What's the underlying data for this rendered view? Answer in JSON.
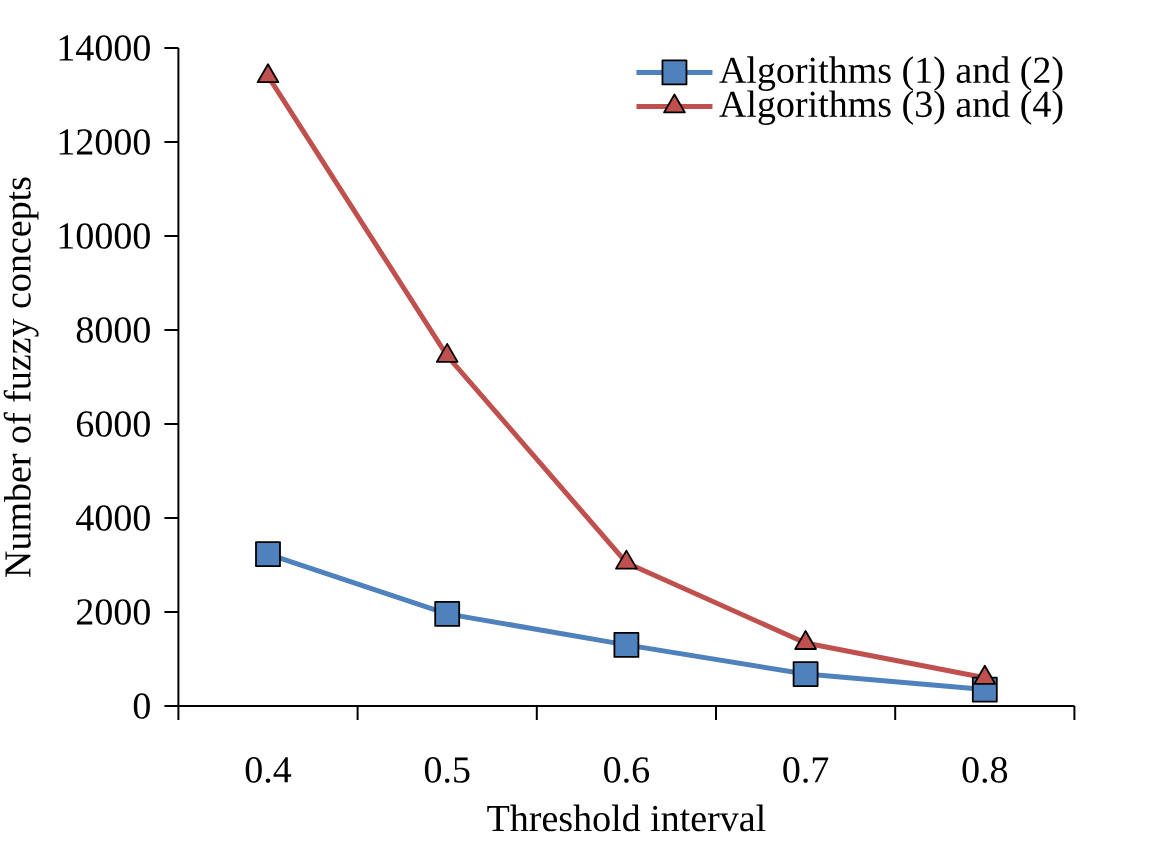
{
  "chart_data": {
    "type": "line",
    "xlabel": "Threshold interval",
    "ylabel": "Number of fuzzy concepts",
    "categories": [
      "0.4",
      "0.5",
      "0.6",
      "0.7",
      "0.8"
    ],
    "series": [
      {
        "name": "Algorithms (1) and (2)",
        "color": "#4f81bd",
        "marker": "square",
        "values": [
          3230,
          1960,
          1300,
          680,
          350
        ]
      },
      {
        "name": "Algorithms (3) and (4)",
        "color": "#c0504d",
        "marker": "triangle",
        "values": [
          13400,
          7450,
          3050,
          1340,
          600
        ]
      }
    ],
    "ylim": [
      0,
      14000
    ],
    "yticks": [
      0,
      2000,
      4000,
      6000,
      8000,
      10000,
      12000,
      14000
    ],
    "grid": false,
    "legend": "top right",
    "line_style": "solid"
  }
}
